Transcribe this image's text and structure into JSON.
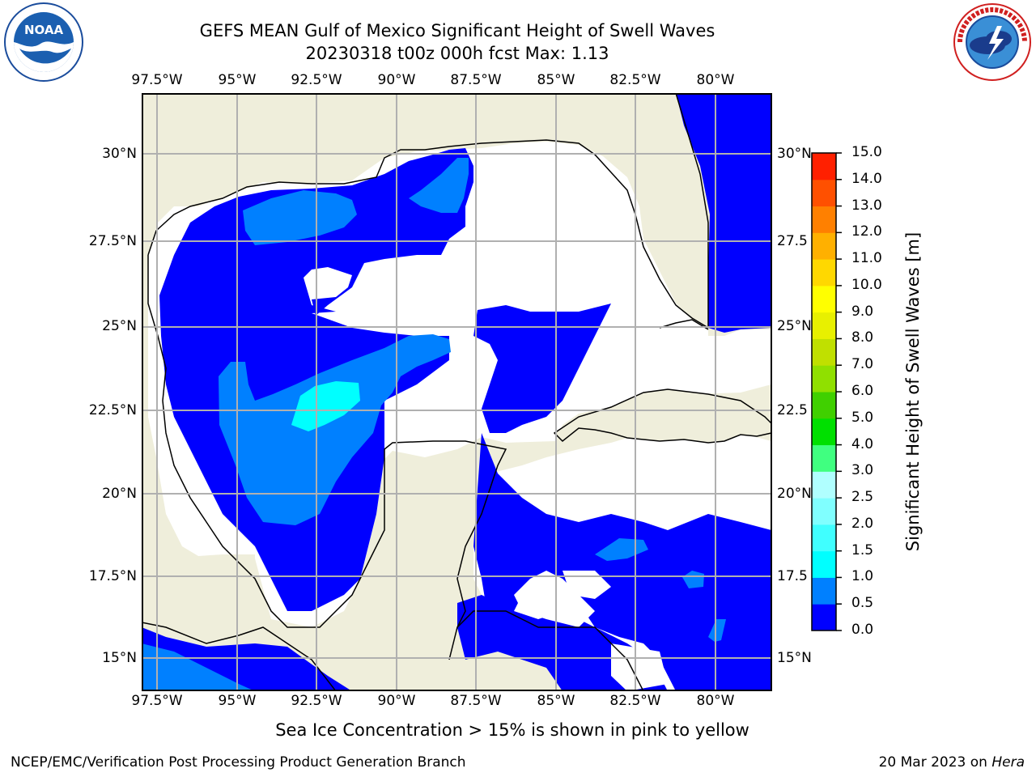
{
  "header": {
    "title_line1": "GEFS MEAN Gulf of Mexico Significant Height of Swell Waves",
    "title_line2": "20230318 t00z 000h fcst   Max: 1.13"
  },
  "logos": {
    "left": {
      "name": "noaa-logo",
      "text": "NOAA",
      "ring_text": "NATIONAL OCEANIC AND ATMOSPHERIC ADMINISTRATION · U.S. DEPARTMENT OF COMMERCE"
    },
    "right": {
      "name": "nws-logo",
      "ring_text": "NATIONAL WEATHER SERVICE"
    }
  },
  "map": {
    "longitude_labels": [
      "97.5°W",
      "95°W",
      "92.5°W",
      "90°W",
      "87.5°W",
      "85°W",
      "82.5°W",
      "80°W"
    ],
    "latitude_labels_left": [
      "30°N",
      "27.5°N",
      "25°N",
      "22.5°N",
      "20°N",
      "17.5°N",
      "15°N"
    ],
    "latitude_labels_right": [
      "30°N",
      "27.5",
      "25°N",
      "22.5",
      "20°N",
      "17.5",
      "15°N"
    ],
    "colors": {
      "land": "#efeedb",
      "no_swell": "#ffffff",
      "swell_0_05": "#0000ff",
      "swell_05_10": "#0080ff",
      "swell_10_15": "#00ffff",
      "grid": "#b0b0b0"
    }
  },
  "colorbar": {
    "ticks": [
      "0.0",
      "0.5",
      "1.0",
      "1.5",
      "2.0",
      "2.5",
      "3.0",
      "4.0",
      "5.0",
      "6.0",
      "7.0",
      "8.0",
      "9.0",
      "10.0",
      "11.0",
      "12.0",
      "13.0",
      "14.0",
      "15.0"
    ],
    "colors": [
      "#0000ff",
      "#0080ff",
      "#00ffff",
      "#40ffff",
      "#80ffff",
      "#b0ffff",
      "#40ff80",
      "#00e000",
      "#40d000",
      "#90e000",
      "#c0e000",
      "#e8f000",
      "#ffff00",
      "#ffd800",
      "#ffb000",
      "#ff8000",
      "#ff5000",
      "#ff2000"
    ],
    "label": "Significant Height of Swell Waves [m]"
  },
  "footer": {
    "note": "Sea Ice Concentration > 15% is shown in pink to yellow",
    "left": "NCEP/EMC/Verification Post Processing Product Generation Branch",
    "right_date": "20 Mar 2023 on ",
    "right_host": "Hera"
  }
}
